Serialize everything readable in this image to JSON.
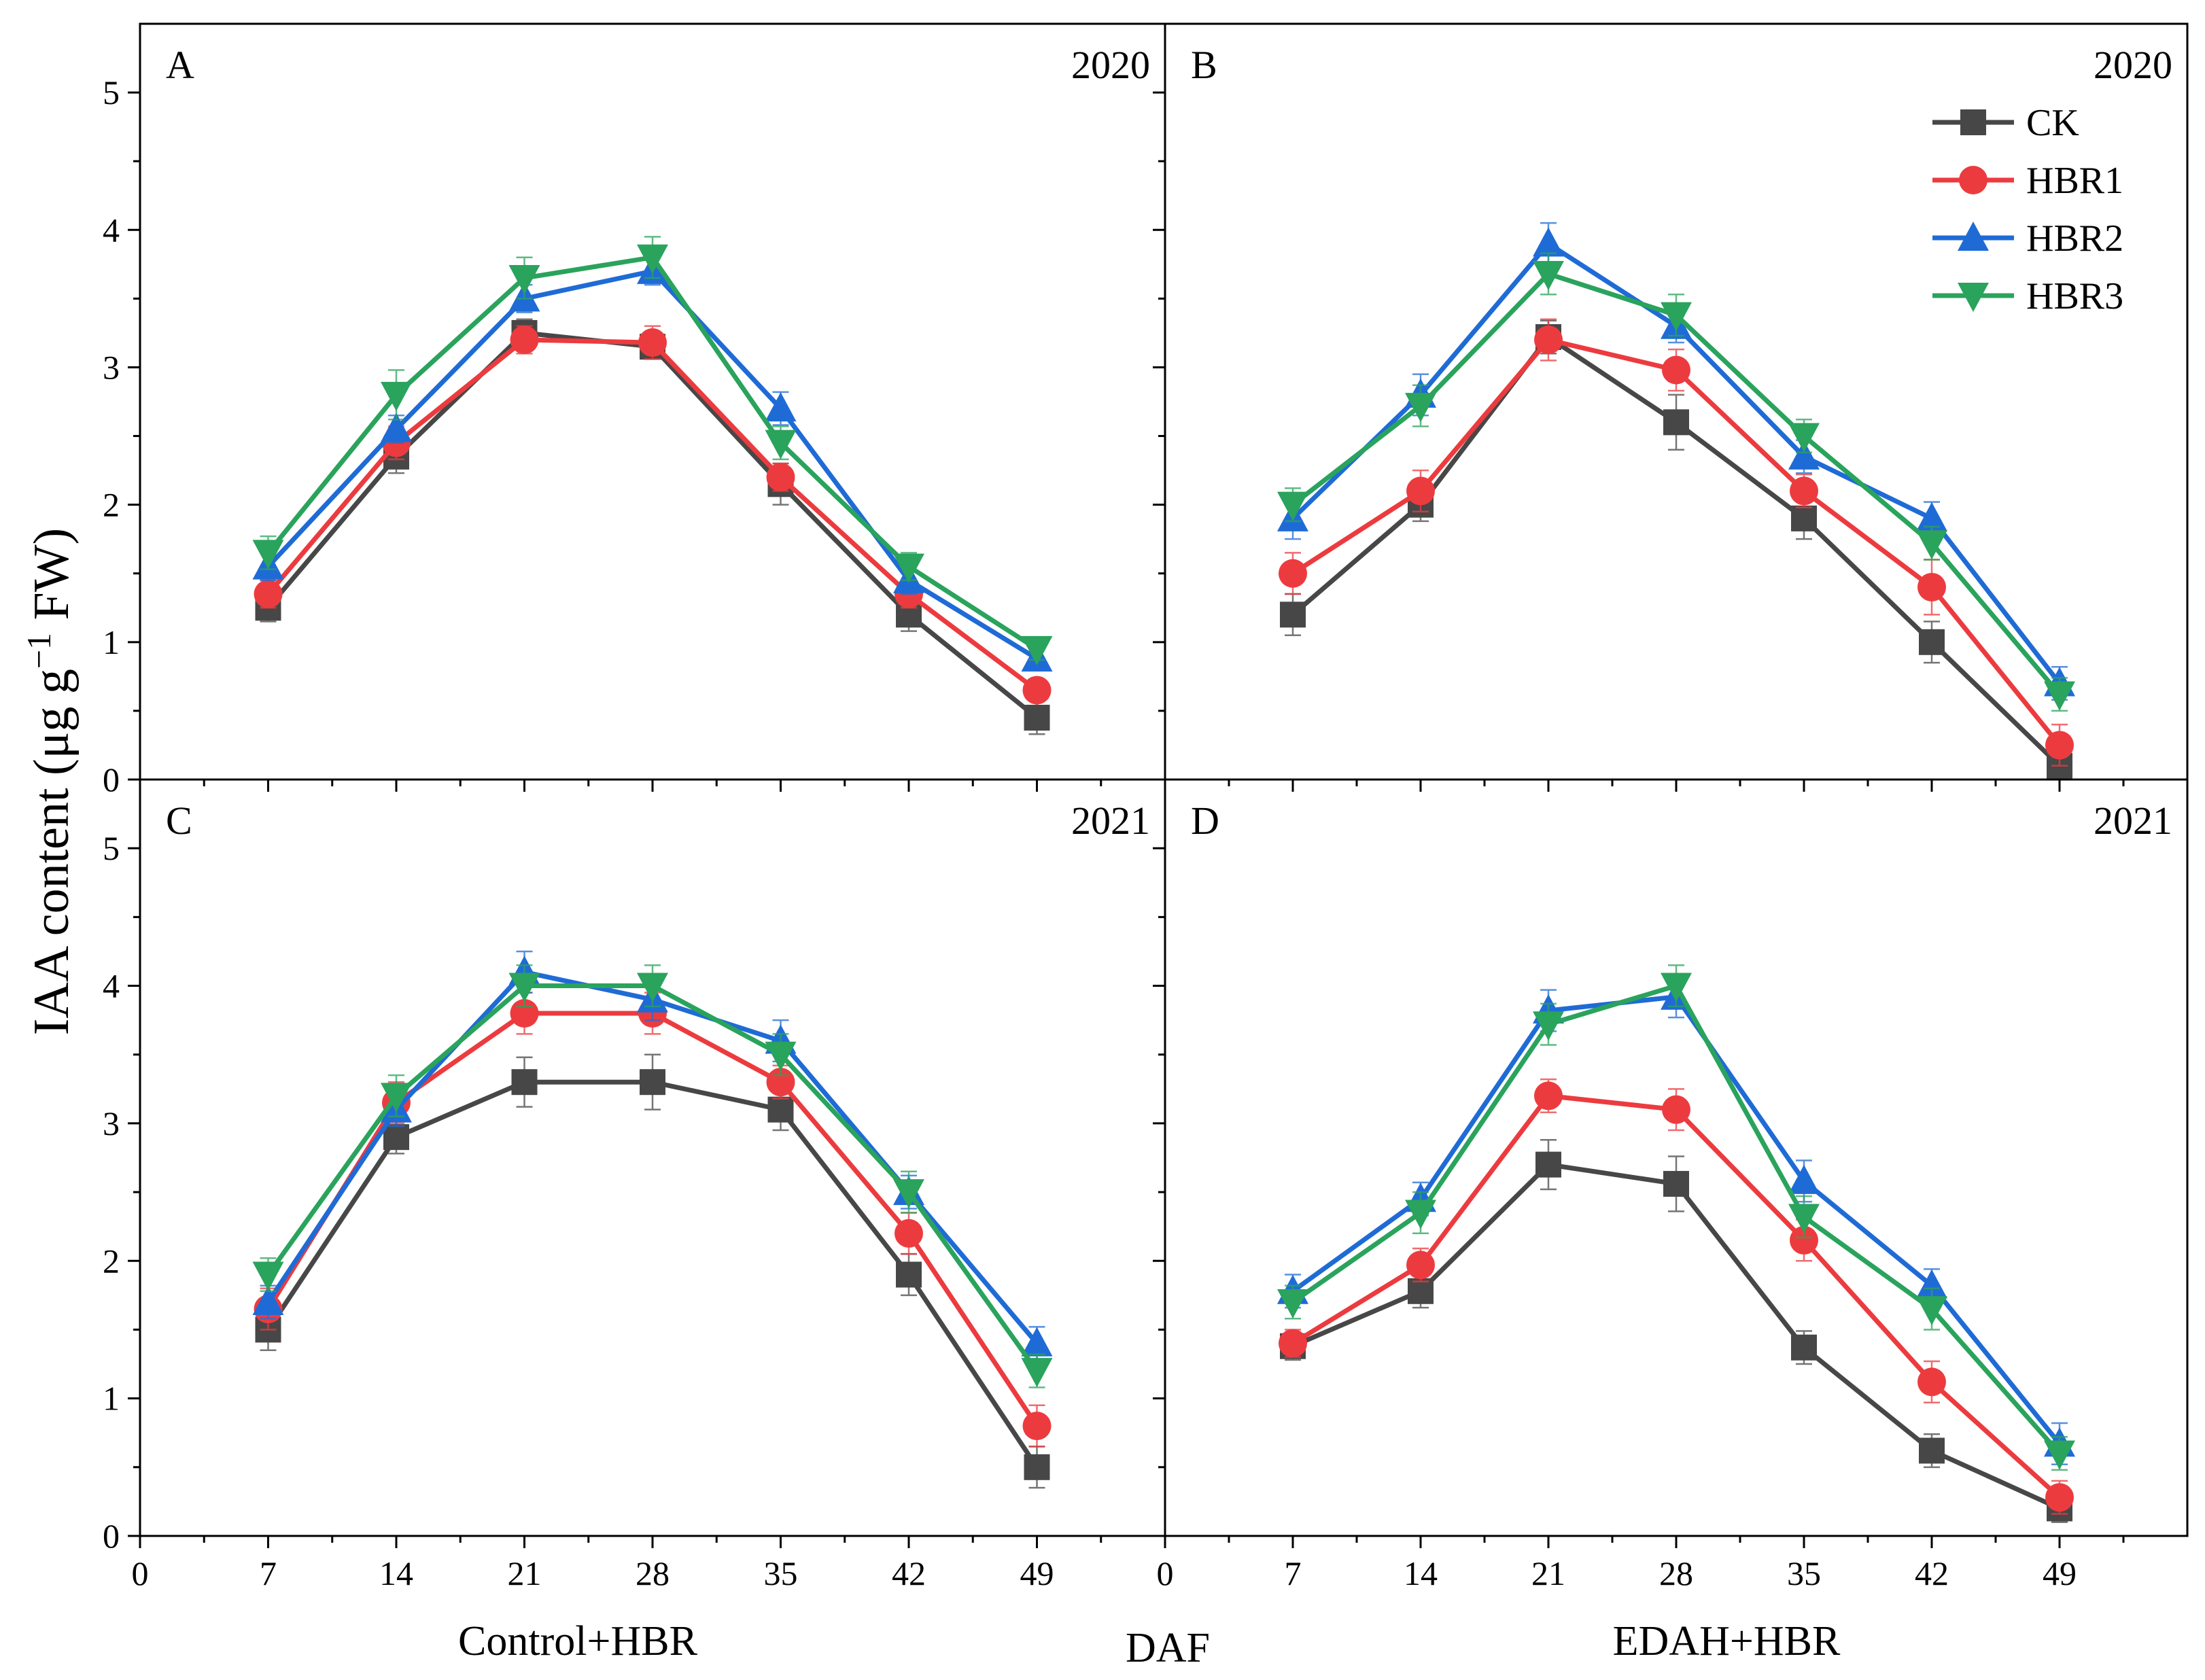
{
  "figure": {
    "ylabel_main": "IAA content (μg g",
    "ylabel_sup": "−1",
    "ylabel_end": " FW)",
    "xlabel": "DAF",
    "group_labels": [
      "Control+HBR",
      "EDAH+HBR"
    ]
  },
  "colors": {
    "CK": "#474747",
    "HBR1": "#ec3b3f",
    "HBR2": "#1f6bd6",
    "HBR3": "#2aa35c"
  },
  "chart_data": [
    {
      "type": "line",
      "panel": "A",
      "year": "2020",
      "x": [
        7,
        14,
        21,
        28,
        35,
        42,
        49
      ],
      "xticks": [
        "0",
        "7",
        "14",
        "21",
        "28",
        "35",
        "42",
        "49"
      ],
      "yticks": [
        "0",
        "1",
        "2",
        "3",
        "4",
        "5"
      ],
      "xlim": [
        0,
        56
      ],
      "ylim": [
        0,
        5.5
      ],
      "series": [
        {
          "name": "CK",
          "values": [
            1.25,
            2.35,
            3.25,
            3.15,
            2.15,
            1.2,
            0.45
          ],
          "err": [
            0.1,
            0.12,
            0.1,
            0.08,
            0.15,
            0.12,
            0.12
          ]
        },
        {
          "name": "HBR1",
          "values": [
            1.35,
            2.45,
            3.2,
            3.18,
            2.2,
            1.35,
            0.65
          ],
          "err": [
            0.1,
            0.12,
            0.1,
            0.12,
            0.1,
            0.1,
            0.08
          ]
        },
        {
          "name": "HBR2",
          "values": [
            1.55,
            2.55,
            3.5,
            3.7,
            2.7,
            1.45,
            0.88
          ],
          "err": [
            0.1,
            0.1,
            0.1,
            0.1,
            0.12,
            0.1,
            0.08
          ]
        },
        {
          "name": "HBR3",
          "values": [
            1.65,
            2.8,
            3.65,
            3.8,
            2.45,
            1.55,
            0.95
          ],
          "err": [
            0.12,
            0.18,
            0.15,
            0.15,
            0.12,
            0.1,
            0.08
          ]
        }
      ]
    },
    {
      "type": "line",
      "panel": "B",
      "year": "2020",
      "x": [
        7,
        14,
        21,
        28,
        35,
        42,
        49
      ],
      "xticks": [
        "0",
        "7",
        "14",
        "21",
        "28",
        "35",
        "42",
        "49"
      ],
      "yticks": [],
      "xlim": [
        0,
        56
      ],
      "ylim": [
        0,
        5.5
      ],
      "legend": {
        "position": "top-right",
        "entries": [
          "CK",
          "HBR1",
          "HBR2",
          "HBR3"
        ]
      },
      "series": [
        {
          "name": "CK",
          "values": [
            1.2,
            2.0,
            3.22,
            2.6,
            1.9,
            1.0,
            0.1
          ],
          "err": [
            0.15,
            0.12,
            0.12,
            0.2,
            0.15,
            0.15,
            0.1
          ]
        },
        {
          "name": "HBR1",
          "values": [
            1.5,
            2.1,
            3.2,
            2.98,
            2.1,
            1.4,
            0.25
          ],
          "err": [
            0.15,
            0.15,
            0.15,
            0.15,
            0.12,
            0.2,
            0.15
          ]
        },
        {
          "name": "HBR2",
          "values": [
            1.9,
            2.8,
            3.9,
            3.3,
            2.35,
            1.9,
            0.7
          ],
          "err": [
            0.15,
            0.15,
            0.15,
            0.12,
            0.12,
            0.12,
            0.12
          ]
        },
        {
          "name": "HBR3",
          "values": [
            2.0,
            2.72,
            3.68,
            3.38,
            2.5,
            1.72,
            0.62
          ],
          "err": [
            0.12,
            0.15,
            0.15,
            0.15,
            0.12,
            0.12,
            0.12
          ]
        }
      ]
    },
    {
      "type": "line",
      "panel": "C",
      "year": "2021",
      "x": [
        7,
        14,
        21,
        28,
        35,
        42,
        49
      ],
      "xticks": [
        "0",
        "7",
        "14",
        "21",
        "28",
        "35",
        "42",
        "49"
      ],
      "yticks": [
        "0",
        "1",
        "2",
        "3",
        "4",
        "5"
      ],
      "xlim": [
        0,
        56
      ],
      "ylim": [
        0,
        5.5
      ],
      "series": [
        {
          "name": "CK",
          "values": [
            1.5,
            2.9,
            3.3,
            3.3,
            3.1,
            1.9,
            0.5
          ],
          "err": [
            0.15,
            0.12,
            0.18,
            0.2,
            0.15,
            0.15,
            0.15
          ]
        },
        {
          "name": "HBR1",
          "values": [
            1.65,
            3.15,
            3.8,
            3.8,
            3.3,
            2.2,
            0.8
          ],
          "err": [
            0.15,
            0.15,
            0.15,
            0.15,
            0.12,
            0.15,
            0.15
          ]
        },
        {
          "name": "HBR2",
          "values": [
            1.7,
            3.1,
            4.1,
            3.9,
            3.6,
            2.5,
            1.4
          ],
          "err": [
            0.12,
            0.12,
            0.15,
            0.15,
            0.15,
            0.12,
            0.12
          ]
        },
        {
          "name": "HBR3",
          "values": [
            1.9,
            3.2,
            4.0,
            4.0,
            3.5,
            2.5,
            1.2
          ],
          "err": [
            0.12,
            0.15,
            0.15,
            0.15,
            0.15,
            0.15,
            0.12
          ]
        }
      ]
    },
    {
      "type": "line",
      "panel": "D",
      "year": "2021",
      "x": [
        7,
        14,
        21,
        28,
        35,
        42,
        49
      ],
      "xticks": [
        "0",
        "7",
        "14",
        "21",
        "28",
        "35",
        "42",
        "49"
      ],
      "yticks": [],
      "xlim": [
        0,
        56
      ],
      "ylim": [
        0,
        5.5
      ],
      "series": [
        {
          "name": "CK",
          "values": [
            1.38,
            1.78,
            2.7,
            2.56,
            1.37,
            0.62,
            0.2
          ],
          "err": [
            0.1,
            0.12,
            0.18,
            0.2,
            0.12,
            0.12,
            0.1
          ]
        },
        {
          "name": "HBR1",
          "values": [
            1.4,
            1.97,
            3.2,
            3.1,
            2.15,
            1.12,
            0.28
          ],
          "err": [
            0.1,
            0.12,
            0.12,
            0.15,
            0.15,
            0.15,
            0.12
          ]
        },
        {
          "name": "HBR2",
          "values": [
            1.78,
            2.45,
            3.82,
            3.92,
            2.58,
            1.82,
            0.67
          ],
          "err": [
            0.12,
            0.12,
            0.15,
            0.15,
            0.15,
            0.12,
            0.15
          ]
        },
        {
          "name": "HBR3",
          "values": [
            1.7,
            2.35,
            3.72,
            4.0,
            2.32,
            1.65,
            0.6
          ],
          "err": [
            0.12,
            0.15,
            0.15,
            0.15,
            0.15,
            0.15,
            0.12
          ]
        }
      ]
    }
  ]
}
